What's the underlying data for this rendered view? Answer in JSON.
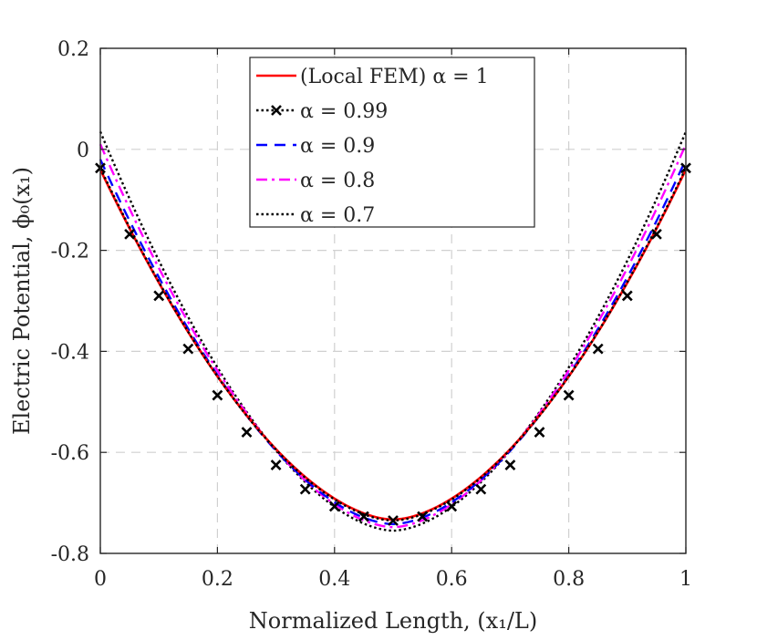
{
  "chart_data": {
    "type": "line",
    "title": "",
    "xlabel": "Normalized Length, (x₁/L)",
    "ylabel": "Electric Potential, ϕ₀(x₁)",
    "xlim": [
      0,
      1
    ],
    "ylim": [
      -0.8,
      0.2
    ],
    "xticks": [
      0,
      0.2,
      0.4,
      0.6,
      0.8,
      1
    ],
    "xtick_labels": [
      "0",
      "0.2",
      "0.4",
      "0.6",
      "0.8",
      "1"
    ],
    "yticks": [
      -0.8,
      -0.6,
      -0.4,
      -0.2,
      0,
      0.2
    ],
    "ytick_labels": [
      "-0.8",
      "-0.6",
      "-0.4",
      "-0.2",
      "0",
      "0.2"
    ],
    "grid": true,
    "legend_position": "top-center",
    "series": [
      {
        "name": "(Local FEM) α = 1",
        "color": "#ff0000",
        "style": "solid",
        "marker": "none",
        "y0": -0.04,
        "ymin": -0.733
      },
      {
        "name": "α = 0.99",
        "color": "#000000",
        "style": "dotted",
        "marker": "x",
        "y0": -0.037,
        "ymin": -0.735
      },
      {
        "name": "α = 0.9",
        "color": "#0000ff",
        "style": "dashed",
        "marker": "none",
        "y0": -0.02,
        "ymin": -0.742
      },
      {
        "name": "α = 0.8",
        "color": "#ff00ff",
        "style": "dashdot",
        "marker": "none",
        "y0": 0.01,
        "ymin": -0.748
      },
      {
        "name": "α = 0.7",
        "color": "#000000",
        "style": "dotted",
        "marker": "none",
        "y0": 0.035,
        "ymin": -0.755
      }
    ],
    "markers_alpha_099": {
      "x": [
        0,
        0.05,
        0.1,
        0.15,
        0.2,
        0.25,
        0.3,
        0.35,
        0.4,
        0.45,
        0.5,
        0.55,
        0.6,
        0.65,
        0.7,
        0.75,
        0.8,
        0.85,
        0.9,
        0.95,
        1
      ],
      "y": [
        -0.037,
        -0.168,
        -0.29,
        -0.395,
        -0.487,
        -0.56,
        -0.625,
        -0.673,
        -0.707,
        -0.727,
        -0.735,
        -0.727,
        -0.707,
        -0.673,
        -0.625,
        -0.56,
        -0.487,
        -0.395,
        -0.29,
        -0.168,
        -0.037
      ]
    }
  }
}
